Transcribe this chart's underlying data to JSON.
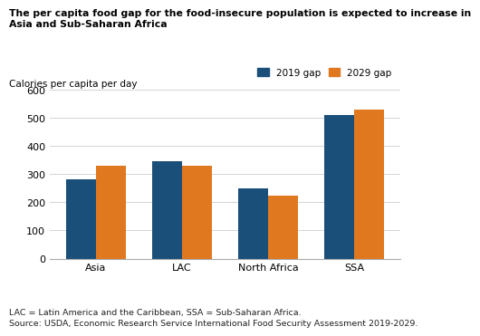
{
  "title_line1": "The per capita food gap for the food-insecure population is expected to increase in",
  "title_line2": "Asia and Sub-Saharan Africa",
  "ylabel": "Calories per capita per day",
  "categories": [
    "Asia",
    "LAC",
    "North Africa",
    "SSA"
  ],
  "values_2019": [
    280,
    345,
    250,
    510
  ],
  "values_2029": [
    330,
    330,
    225,
    530
  ],
  "color_2019": "#1a4f7a",
  "color_2029": "#e07820",
  "legend_labels": [
    "2019 gap",
    "2029 gap"
  ],
  "ylim": [
    0,
    600
  ],
  "yticks": [
    0,
    100,
    200,
    300,
    400,
    500,
    600
  ],
  "footnote_line1": "LAC = Latin America and the Caribbean, SSA = Sub-Saharan Africa.",
  "footnote_line2": "Source: USDA, Economic Research Service International Food Security Assessment 2019-2029.",
  "background_color": "#ffffff",
  "bar_width": 0.35
}
